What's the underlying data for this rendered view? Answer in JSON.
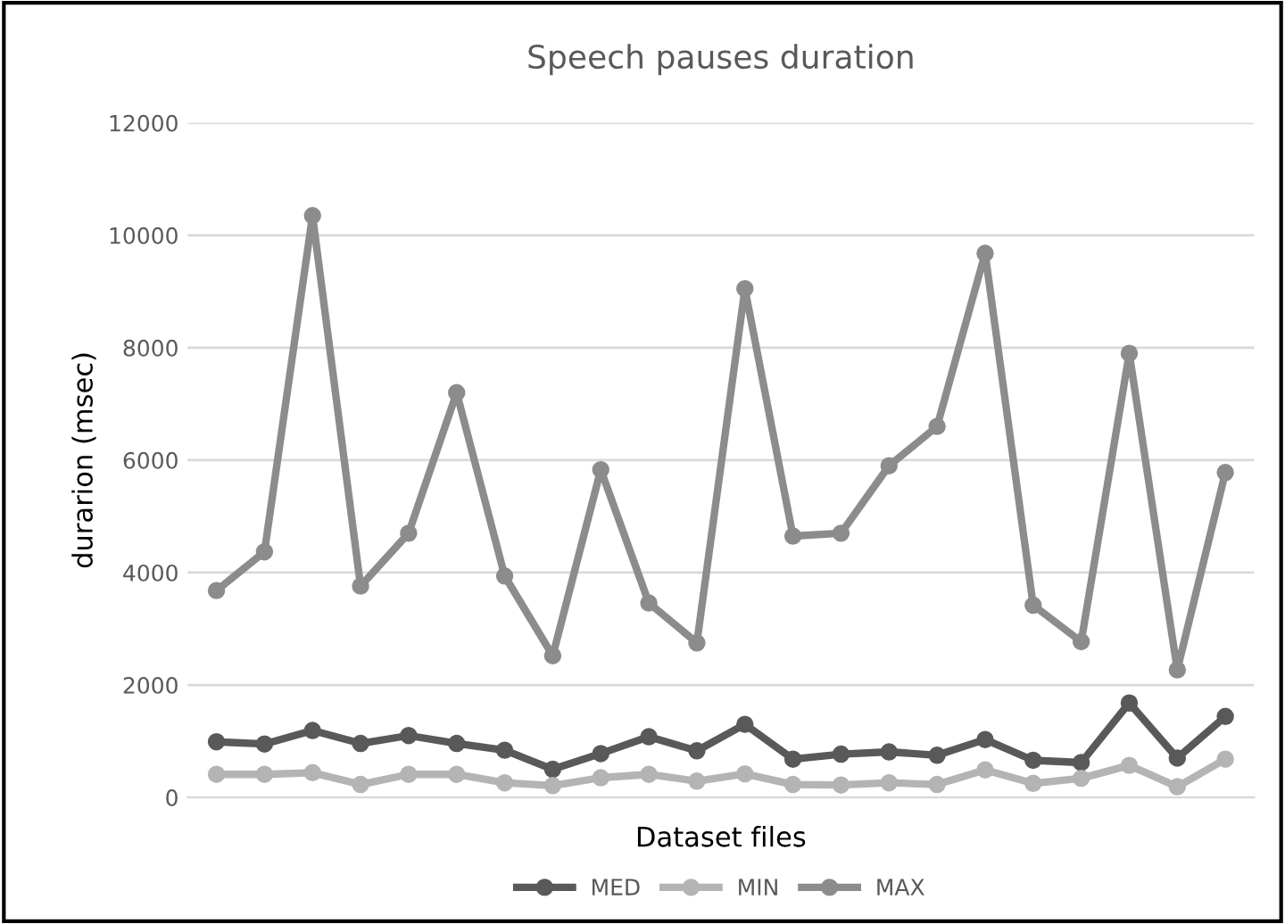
{
  "chart_data": {
    "type": "line",
    "title": "Speech pauses duration",
    "xlabel": "Dataset files",
    "ylabel": "durarion (msec)",
    "categories": [
      null,
      null,
      null,
      null,
      null,
      null,
      null,
      null,
      null,
      null,
      null,
      null,
      null,
      null,
      null,
      null,
      null,
      null,
      null,
      null,
      null,
      null
    ],
    "series": [
      {
        "name": "MED",
        "color": "#595959",
        "values": [
          990,
          950,
          1190,
          960,
          1100,
          960,
          840,
          500,
          780,
          1080,
          830,
          1300,
          680,
          770,
          810,
          750,
          1030,
          660,
          620,
          1680,
          700,
          1440
        ]
      },
      {
        "name": "MIN",
        "color": "#b4b4b4",
        "values": [
          410,
          410,
          440,
          230,
          410,
          410,
          260,
          210,
          350,
          410,
          290,
          420,
          230,
          220,
          260,
          230,
          490,
          250,
          340,
          570,
          190,
          680
        ]
      },
      {
        "name": "MAX",
        "color": "#8c8c8c",
        "values": [
          3680,
          4370,
          10350,
          3760,
          4700,
          7200,
          3940,
          2520,
          5830,
          3460,
          2750,
          9050,
          4650,
          4700,
          5900,
          6600,
          9680,
          3420,
          2770,
          7900,
          2270,
          5780
        ]
      }
    ],
    "ylim": [
      0,
      12000
    ],
    "yticks": [
      0,
      2000,
      4000,
      6000,
      8000,
      10000,
      12000
    ],
    "grid": "y",
    "legend": "bottom",
    "marker": "circle",
    "line_style": "solid"
  }
}
